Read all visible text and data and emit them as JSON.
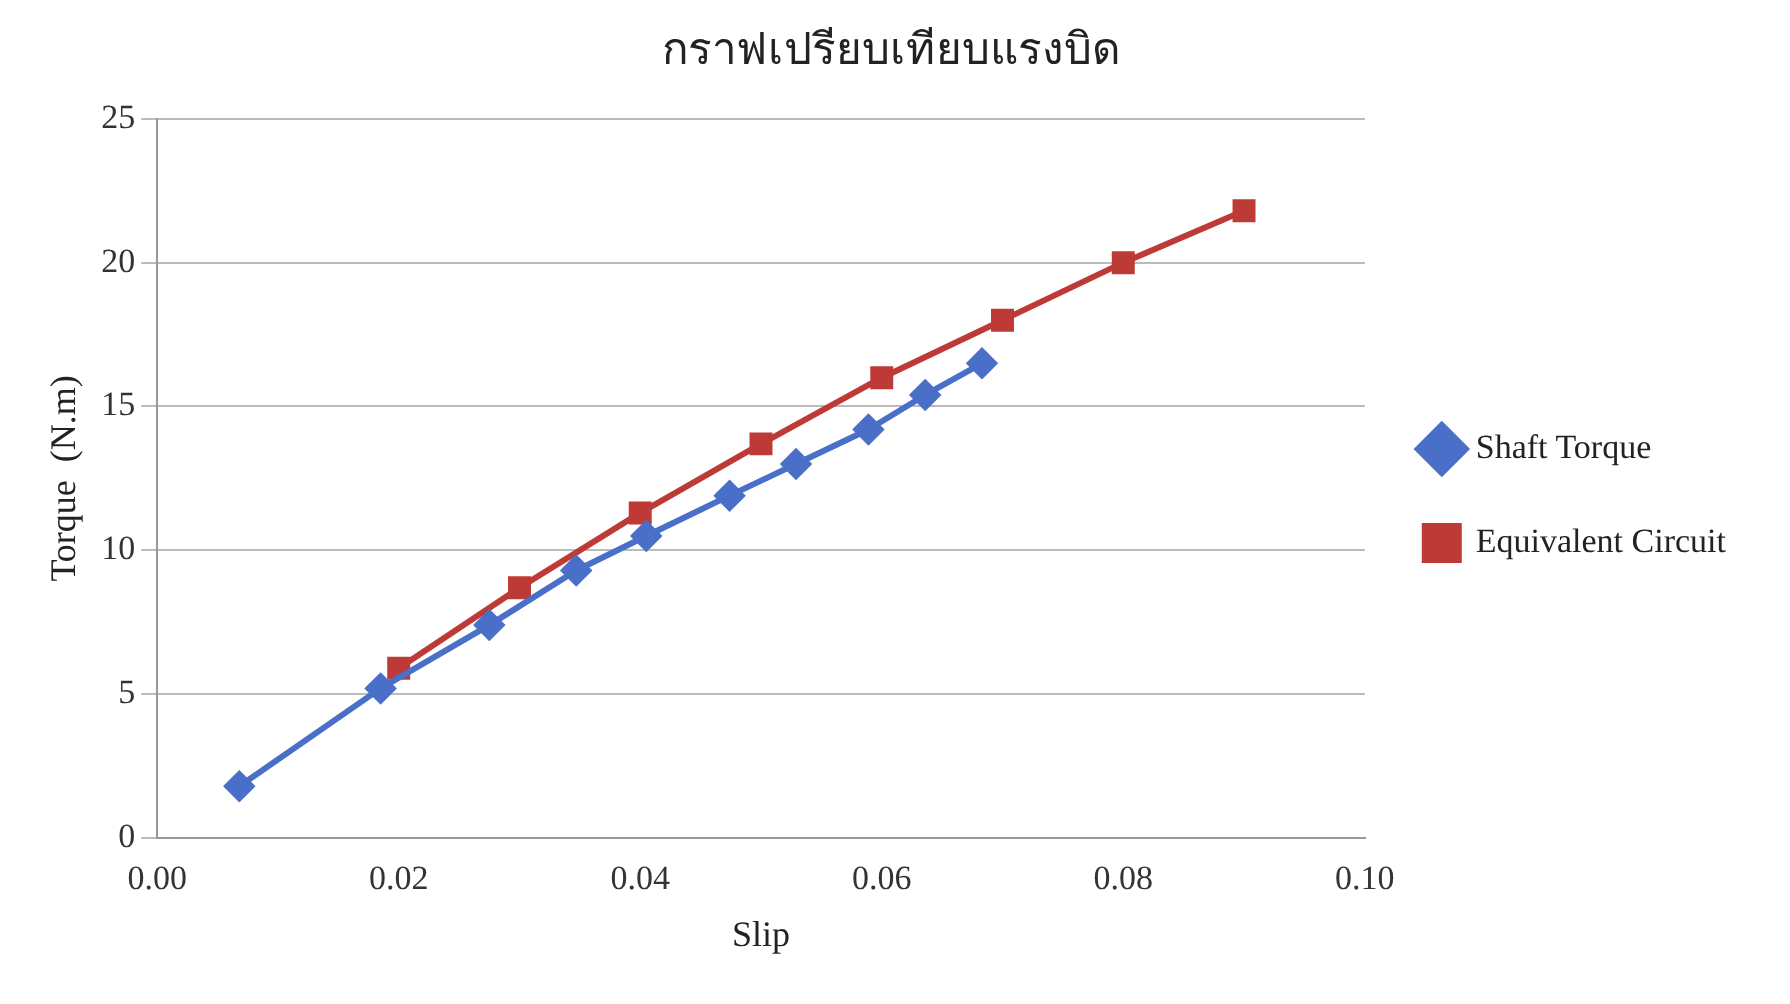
{
  "chart_data": {
    "type": "line",
    "title": "กราฟเปรียบเทียบแรงบิด",
    "xlabel": "Slip",
    "ylabel": "Torque  (N.m)",
    "series": [
      {
        "name": "Shaft Torque",
        "color": "#4a6fc8",
        "marker": "diamond",
        "x": [
          0.0068,
          0.0185,
          0.0275,
          0.0347,
          0.0405,
          0.0474,
          0.0529,
          0.0589,
          0.0636,
          0.0683
        ],
        "values": [
          1.8,
          5.2,
          7.4,
          9.3,
          10.5,
          11.9,
          13.0,
          14.2,
          15.4,
          16.5
        ]
      },
      {
        "name": "Equivalent Circuit",
        "color": "#be3a36",
        "marker": "square",
        "x": [
          0.02,
          0.03,
          0.04,
          0.05,
          0.06,
          0.07,
          0.08,
          0.09
        ],
        "values": [
          5.9,
          8.7,
          11.3,
          13.7,
          16.0,
          18.0,
          20.0,
          21.8
        ]
      }
    ],
    "xlim": [
      0,
      0.1
    ],
    "xticks": [
      {
        "value": 0,
        "label": "0.00"
      },
      {
        "value": 0.02,
        "label": "0.02"
      },
      {
        "value": 0.04,
        "label": "0.04"
      },
      {
        "value": 0.06,
        "label": "0.06"
      },
      {
        "value": 0.08,
        "label": "0.08"
      },
      {
        "value": 0.1,
        "label": "0.10"
      }
    ],
    "ylim": [
      0,
      25
    ],
    "yticks": [
      0,
      5,
      10,
      15,
      20,
      25
    ],
    "grid": "y",
    "legend": "right"
  }
}
